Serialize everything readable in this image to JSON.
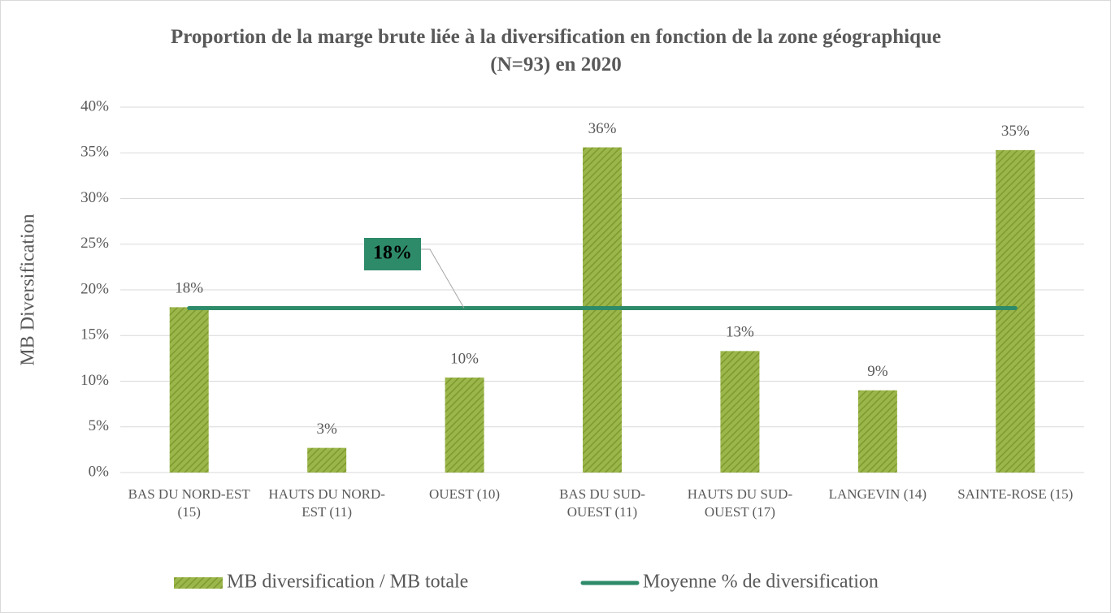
{
  "chart_data": {
    "type": "bar",
    "title": "Proportion de la marge brute liée à la diversification en fonction de la zone géographique (N=93) en 2020",
    "y_label": "MB Diversification",
    "categories": [
      "BAS DU NORD-EST (15)",
      "HAUTS DU NORD-EST (11)",
      "OUEST (10)",
      "BAS DU SUD-OUEST (11)",
      "HAUTS DU SUD-OUEST (17)",
      "LANGEVIN (14)",
      "SAINTE-ROSE (15)"
    ],
    "series": [
      {
        "name": "MB diversification / MB totale",
        "type": "bar",
        "color": "#8faa3b",
        "values": [
          18.1,
          2.7,
          10.4,
          35.6,
          13.3,
          9.0,
          35.3
        ],
        "value_labels": [
          "18%",
          "3%",
          "10%",
          "36%",
          "13%",
          "9%",
          "35%"
        ]
      },
      {
        "name": "Moyenne % de diversification",
        "type": "line",
        "color": "#2e8b6a",
        "values": [
          18,
          18,
          18,
          18,
          18,
          18,
          18
        ]
      }
    ],
    "annotation": {
      "text": "18%",
      "value": 18
    },
    "ylim": [
      0,
      40
    ],
    "yticks": [
      {
        "value": 0,
        "label": "0%"
      },
      {
        "value": 5,
        "label": "5%"
      },
      {
        "value": 10,
        "label": "10%"
      },
      {
        "value": 15,
        "label": "15%"
      },
      {
        "value": 20,
        "label": "20%"
      },
      {
        "value": 25,
        "label": "25%"
      },
      {
        "value": 30,
        "label": "30%"
      },
      {
        "value": 35,
        "label": "35%"
      },
      {
        "value": 40,
        "label": "40%"
      }
    ],
    "grid": true,
    "legend": "bottom"
  }
}
